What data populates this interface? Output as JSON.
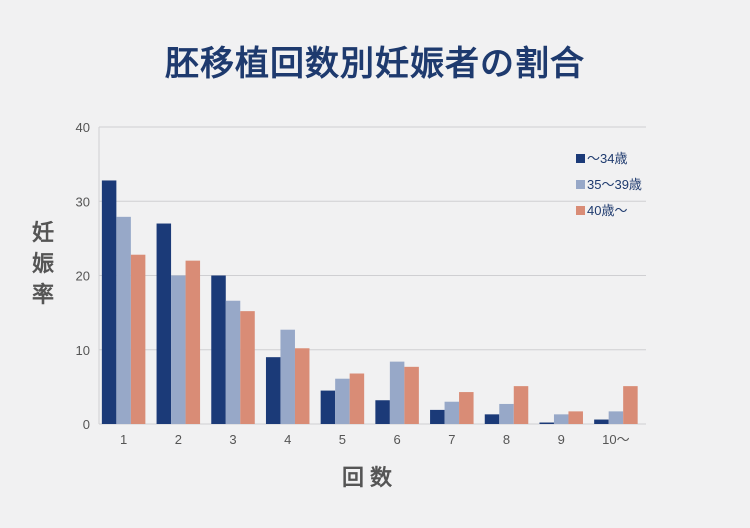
{
  "title": "胚移植回数別妊娠者の割合",
  "chart_data": {
    "type": "bar",
    "title": "胚移植回数別妊娠者の割合",
    "xlabel": "回数",
    "ylabel": "妊娠率",
    "ylim": [
      0,
      40
    ],
    "yticks": [
      "0",
      "10",
      "20",
      "30",
      "40"
    ],
    "grid": true,
    "legend_position": "top-right",
    "categories": [
      "1",
      "2",
      "3",
      "4",
      "5",
      "6",
      "7",
      "8",
      "9",
      "10〜"
    ],
    "series": [
      {
        "name": "〜34歳",
        "color": "#1b3a78",
        "values": [
          32.8,
          27.0,
          20.0,
          9.0,
          4.5,
          3.2,
          1.9,
          1.3,
          0.2,
          0.6
        ]
      },
      {
        "name": "35〜39歳",
        "color": "#97a8c8",
        "values": [
          27.9,
          20.0,
          16.6,
          12.7,
          6.1,
          8.4,
          3.0,
          2.7,
          1.3,
          1.7
        ]
      },
      {
        "name": "40歳〜",
        "color": "#d98c76",
        "values": [
          22.8,
          22.0,
          15.2,
          10.2,
          6.8,
          7.7,
          4.3,
          5.1,
          1.7,
          5.1
        ]
      }
    ]
  }
}
